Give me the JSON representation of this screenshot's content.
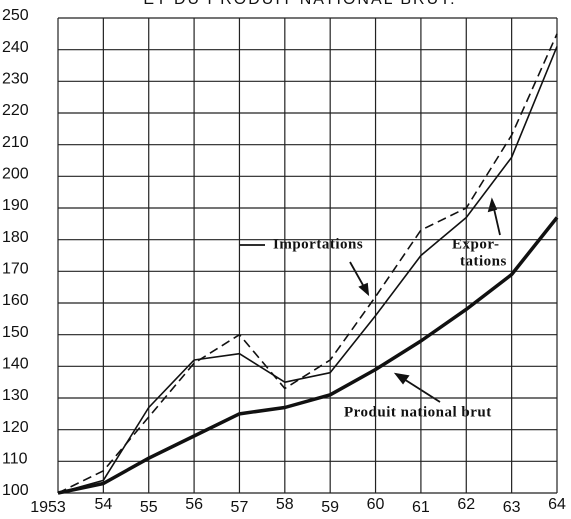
{
  "chart_data": {
    "type": "line",
    "title": "ET DU PRODUIT NATIONAL BRUT.",
    "categories": [
      "1953",
      "54",
      "55",
      "56",
      "57",
      "58",
      "59",
      "60",
      "61",
      "62",
      "63",
      "64"
    ],
    "series": [
      {
        "name": "Exportations",
        "color": "#111111",
        "width": 1.6,
        "dashed": false,
        "values": [
          100,
          104,
          127,
          142,
          144,
          135,
          138,
          156,
          175,
          187,
          206,
          241
        ]
      },
      {
        "name": "Importations",
        "color": "#111111",
        "width": 1.6,
        "dashed": true,
        "values": [
          100,
          107,
          124,
          141,
          150,
          133,
          142,
          162,
          183,
          190,
          213,
          245
        ]
      },
      {
        "name": "Produit national brut",
        "color": "#111111",
        "width": 3.5,
        "dashed": false,
        "values": [
          100,
          103,
          111,
          118,
          125,
          127,
          131,
          139,
          148,
          158,
          169,
          187
        ]
      }
    ],
    "annotations": [
      "Importations",
      "Expor-",
      "tations",
      "Produit national brut"
    ],
    "ylim": [
      100,
      250
    ],
    "yticks": [
      100,
      110,
      120,
      130,
      140,
      150,
      160,
      170,
      180,
      190,
      200,
      210,
      220,
      230,
      240,
      250
    ],
    "grid": true
  }
}
